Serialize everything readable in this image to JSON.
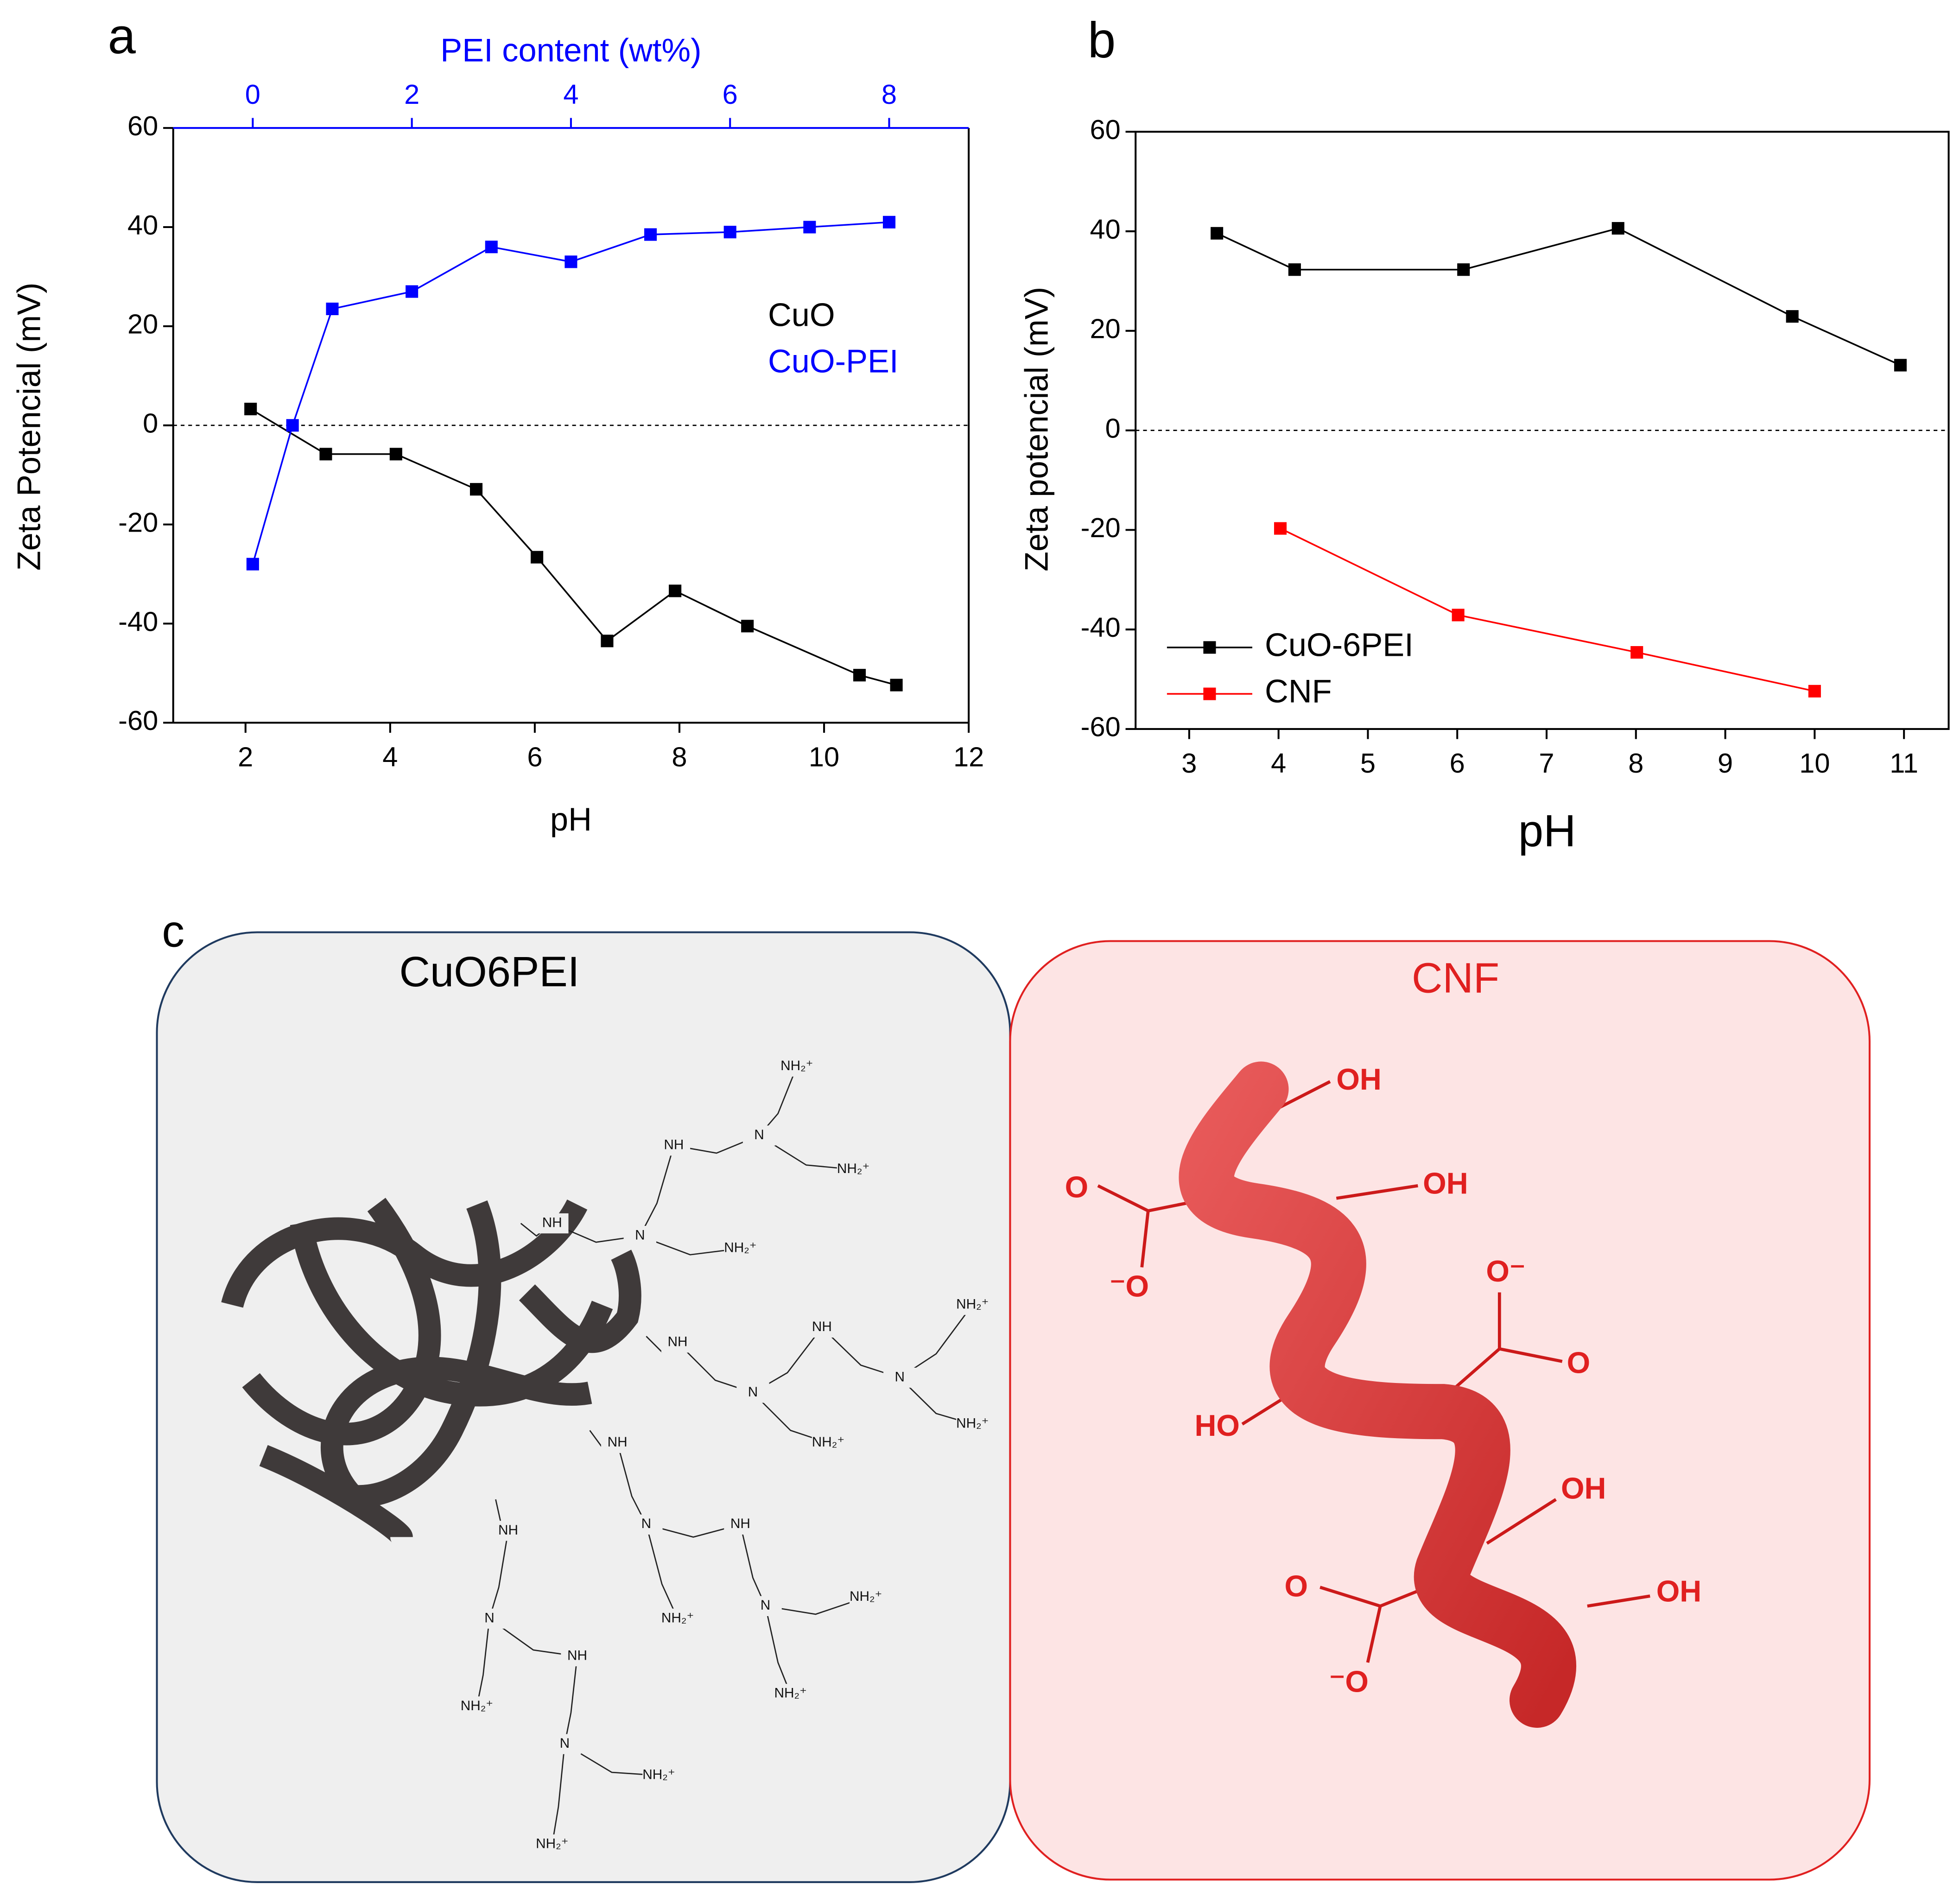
{
  "chart_data": [
    {
      "type": "line",
      "panel": "a",
      "xlabel": "pH",
      "ylabel": "Zeta Potencial (mV)",
      "x2label": "PEI content (wt%)",
      "xlim": [
        1,
        12
      ],
      "xticks": [
        2,
        4,
        6,
        8,
        10,
        12
      ],
      "x2lim": [
        -1,
        9
      ],
      "x2ticks": [
        0,
        2,
        4,
        6,
        8
      ],
      "ylim": [
        -60,
        60
      ],
      "yticks": [
        -60,
        -40,
        -20,
        0,
        20,
        40,
        60
      ],
      "hline": 0,
      "series": [
        {
          "name": "CuO",
          "color": "#000000",
          "x": [
            2.07,
            3.11,
            4.08,
            5.19,
            6.03,
            7.0,
            7.94,
            8.94,
            10.49,
            11.0
          ],
          "values": [
            3.3,
            -5.8,
            -5.8,
            -12.9,
            -26.6,
            -43.5,
            -33.4,
            -40.5,
            -50.4,
            -52.4
          ]
        },
        {
          "name": "CuO-PEI",
          "color": "#0000ff",
          "axis": "x2",
          "x": [
            0,
            0.5,
            1,
            2,
            3,
            4,
            5,
            6,
            7,
            8
          ],
          "values": [
            -28,
            0,
            23.5,
            27,
            36,
            33,
            38.5,
            39,
            40,
            41
          ]
        }
      ]
    },
    {
      "type": "line",
      "panel": "b",
      "xlabel": "pH",
      "ylabel": "Zeta potencial (mV)",
      "xlim": [
        2.4,
        11.5
      ],
      "xticks": [
        3,
        4,
        5,
        6,
        7,
        8,
        9,
        10,
        11
      ],
      "ylim": [
        -60,
        60
      ],
      "yticks": [
        -60,
        -40,
        -20,
        0,
        20,
        40,
        60
      ],
      "hline": 0,
      "series": [
        {
          "name": "CuO-6PEI",
          "color": "#000000",
          "x": [
            3.31,
            4.18,
            6.07,
            7.8,
            9.75,
            10.96
          ],
          "values": [
            39.6,
            32.3,
            32.3,
            40.6,
            22.9,
            13.1
          ]
        },
        {
          "name": "CNF",
          "color": "#ff0000",
          "x": [
            4.02,
            6.01,
            8.01,
            10.0
          ],
          "values": [
            -19.7,
            -37.1,
            -44.6,
            -52.4
          ]
        }
      ]
    }
  ],
  "panel_c": {
    "panel": "c",
    "left_title": "CuO6PEI",
    "right_title": "CNF",
    "pei_labels": [
      "NH",
      "N",
      "NH₂⁺",
      "NH",
      "N",
      "NH₂⁺",
      "NH₂⁺",
      "NH",
      "N",
      "NH",
      "N",
      "NH₂⁺",
      "NH₂⁺",
      "NH₂⁺",
      "NH",
      "N",
      "NH",
      "N",
      "NH₂⁺",
      "NH₂⁺",
      "NH₂⁺",
      "NH",
      "N",
      "NH",
      "N",
      "NH₂⁺",
      "NH₂⁺",
      "NH₂⁺"
    ],
    "cnf_labels": [
      "OH",
      "OH",
      "O",
      "⁻O",
      "O⁻",
      "O",
      "HO",
      "OH",
      "O",
      "OH",
      "⁻O"
    ]
  }
}
